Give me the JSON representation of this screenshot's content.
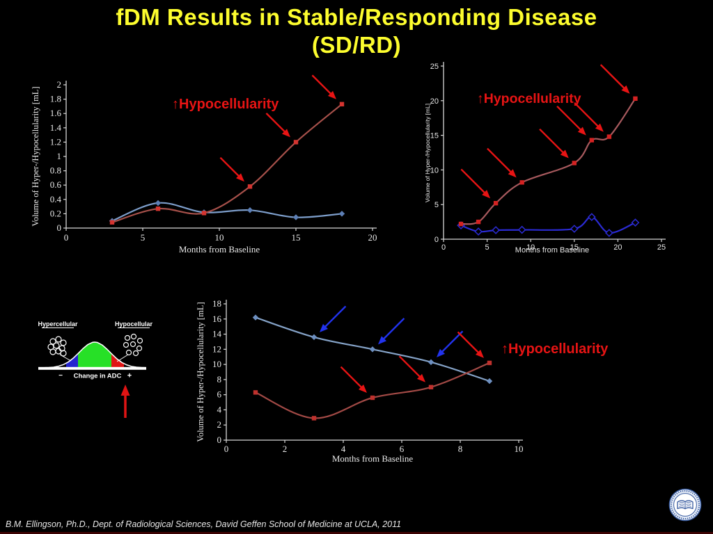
{
  "title": {
    "line1": "fDM Results in Stable/Responding Disease",
    "line2": "(SD/RD)",
    "color": "#fdfd2e"
  },
  "footer": {
    "citation": "B.M. Ellingson, Ph.D., Dept. of Radiological Sciences, David Geffen School of Medicine at UCLA, 2011",
    "bar_color": "#3d0303"
  },
  "logo": {
    "icon": "university-of-california-seal",
    "ring_color": "#35599f"
  },
  "adc_diagram": {
    "left_label": "Hypercellular",
    "right_label": "Hypocellular",
    "axis_label": "Change in ADC",
    "minus_label": "−",
    "plus_label": "+",
    "regions": {
      "left_color": "#2323cf",
      "center_color": "#27e027",
      "right_color": "#e01414"
    },
    "arrow_color": "#e01414"
  },
  "chart_data": [
    {
      "id": "top-left",
      "type": "line",
      "title": "",
      "xlabel": "Months from Baseline",
      "ylabel": "Volume of Hyper-/Hypocellularity [mL]",
      "xlim": [
        0,
        20
      ],
      "ylim": [
        0,
        2
      ],
      "grid": false,
      "legend": "none",
      "xticks": [
        "0",
        "5",
        "10",
        "15",
        "20"
      ],
      "yticks": [
        "0",
        "0.2",
        "0.4",
        "0.6",
        "0.8",
        "1",
        "1.2",
        "1.4",
        "1.6",
        "1.8",
        "2"
      ],
      "annotation": {
        "text": "↑Hypocellularity",
        "color": "#e81414"
      },
      "series": [
        {
          "label": "",
          "line_color": "#7d9ecb",
          "marker": "diamond",
          "marker_color": "#5d7fb5",
          "x": [
            3,
            6,
            9,
            12,
            15,
            18
          ],
          "y": [
            0.1,
            0.35,
            0.22,
            0.25,
            0.15,
            0.2
          ]
        },
        {
          "label": "Hypocellularity",
          "line_color": "#a8514b",
          "marker": "square",
          "marker_color": "#d43430",
          "x": [
            3,
            6,
            9,
            12,
            15,
            18
          ],
          "y": [
            0.08,
            0.27,
            0.21,
            0.58,
            1.2,
            1.73
          ]
        }
      ],
      "arrows": [
        {
          "color": "#e81414",
          "at": [
            12,
            0.58
          ],
          "dir": "down-right"
        },
        {
          "color": "#e81414",
          "at": [
            15,
            1.2
          ],
          "dir": "down-right"
        },
        {
          "color": "#e81414",
          "at": [
            18,
            1.73
          ],
          "dir": "down-right"
        }
      ]
    },
    {
      "id": "top-right",
      "type": "line",
      "title": "",
      "xlabel": "Months from Baseline",
      "ylabel": "Volume of Hyper-/Hypocellularity [mL]",
      "xlim": [
        0,
        25
      ],
      "ylim": [
        0,
        25
      ],
      "grid": false,
      "legend": "none",
      "xticks": [
        "0",
        "5",
        "10",
        "15",
        "20",
        "25"
      ],
      "yticks": [
        "0",
        "5",
        "10",
        "15",
        "20",
        "25"
      ],
      "annotation": {
        "text": "↑Hypocellularity",
        "color": "#e81414"
      },
      "series": [
        {
          "label": "",
          "line_color": "#2b2bd4",
          "marker": "diamond-open",
          "marker_color": "#2b2bd4",
          "x": [
            2,
            4,
            6,
            9,
            15,
            17,
            19,
            22
          ],
          "y": [
            2.0,
            1.1,
            1.3,
            1.35,
            1.5,
            3.2,
            0.9,
            2.4
          ]
        },
        {
          "label": "Hypocellularity",
          "line_color": "#a85a5e",
          "marker": "square",
          "marker_color": "#d42222",
          "x": [
            2,
            4,
            6,
            9,
            15,
            17,
            19,
            22
          ],
          "y": [
            2.2,
            2.5,
            5.2,
            8.2,
            11.0,
            14.3,
            14.8,
            20.3
          ]
        }
      ],
      "arrows": [
        {
          "color": "#e81414",
          "at": [
            6,
            5.2
          ],
          "dir": "down-right"
        },
        {
          "color": "#e81414",
          "at": [
            9,
            8.2
          ],
          "dir": "down-right"
        },
        {
          "color": "#e81414",
          "at": [
            15,
            11.0
          ],
          "dir": "down-right"
        },
        {
          "color": "#e81414",
          "at": [
            17,
            14.3
          ],
          "dir": "down-right"
        },
        {
          "color": "#e81414",
          "at": [
            19,
            14.8
          ],
          "dir": "down-right"
        },
        {
          "color": "#e81414",
          "at": [
            22,
            20.3
          ],
          "dir": "down-right"
        }
      ]
    },
    {
      "id": "bottom-center",
      "type": "line",
      "title": "",
      "xlabel": "Months from Baseline",
      "ylabel": "Volume of Hyper-/Hypocellularity [mL]",
      "xlim": [
        0,
        10
      ],
      "ylim": [
        0,
        18
      ],
      "grid": false,
      "legend": "none",
      "xticks": [
        "0",
        "2",
        "4",
        "6",
        "8",
        "10"
      ],
      "yticks": [
        "0",
        "2",
        "4",
        "6",
        "8",
        "10",
        "12",
        "14",
        "16",
        "18"
      ],
      "annotation": {
        "text": "↑Hypocellularity",
        "color": "#e81414"
      },
      "series": [
        {
          "label": "",
          "line_color": "#85a3c8",
          "marker": "diamond",
          "marker_color": "#6d8fc0",
          "x": [
            1,
            3,
            5,
            7,
            9
          ],
          "y": [
            16.2,
            13.6,
            12.0,
            10.3,
            7.8
          ]
        },
        {
          "label": "Hypocellularity",
          "line_color": "#a34a46",
          "marker": "square",
          "marker_color": "#bf312d",
          "x": [
            1,
            3,
            5,
            7,
            9
          ],
          "y": [
            6.3,
            2.9,
            5.6,
            7.0,
            10.2
          ]
        }
      ],
      "arrows": [
        {
          "color": "#2233ee",
          "at": [
            3,
            13.6
          ],
          "dir": "down-left"
        },
        {
          "color": "#2233ee",
          "at": [
            5,
            12.0
          ],
          "dir": "down-left"
        },
        {
          "color": "#2233ee",
          "at": [
            7,
            10.3
          ],
          "dir": "down-left"
        },
        {
          "color": "#e81414",
          "at": [
            5,
            5.6
          ],
          "dir": "down-right"
        },
        {
          "color": "#e81414",
          "at": [
            7,
            7.0
          ],
          "dir": "down-right"
        },
        {
          "color": "#e81414",
          "at": [
            9,
            10.2
          ],
          "dir": "down-right"
        }
      ]
    }
  ]
}
